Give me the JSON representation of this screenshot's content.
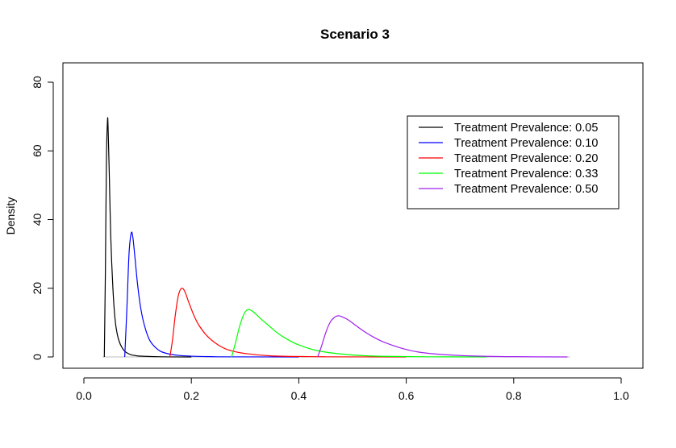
{
  "chart_data": {
    "type": "line",
    "title": "Scenario 3",
    "xlabel": "",
    "ylabel": "Density",
    "xlim": [
      0.0,
      1.0
    ],
    "ylim": [
      0,
      80
    ],
    "x_ticks": [
      0.0,
      0.2,
      0.4,
      0.6,
      0.8,
      1.0
    ],
    "x_tick_labels": [
      "0.0",
      "0.2",
      "0.4",
      "0.6",
      "0.8",
      "1.0"
    ],
    "y_ticks": [
      0,
      20,
      40,
      60,
      80
    ],
    "y_tick_labels": [
      "0",
      "20",
      "40",
      "60",
      "80"
    ],
    "grid": false,
    "legend_position": "top-right",
    "series": [
      {
        "name": "Treatment Prevalence: 0.05",
        "color": "#000000",
        "x": [
          0.038,
          0.04,
          0.042,
          0.044,
          0.045,
          0.047,
          0.05,
          0.054,
          0.058,
          0.063,
          0.07,
          0.08,
          0.1,
          0.15,
          0.2
        ],
        "y": [
          0,
          25,
          58,
          69,
          67,
          55,
          35,
          20,
          11,
          6,
          3,
          1.2,
          0.3,
          0.05,
          0
        ]
      },
      {
        "name": "Treatment Prevalence: 0.10",
        "color": "#0000ff",
        "x": [
          0.076,
          0.08,
          0.084,
          0.088,
          0.091,
          0.095,
          0.1,
          0.106,
          0.113,
          0.122,
          0.135,
          0.15,
          0.18,
          0.25,
          0.4
        ],
        "y": [
          0,
          14,
          30,
          36,
          35,
          29,
          21,
          14,
          9,
          5,
          2.5,
          1.2,
          0.4,
          0.05,
          0
        ]
      },
      {
        "name": "Treatment Prevalence: 0.20",
        "color": "#ff0000",
        "x": [
          0.16,
          0.165,
          0.17,
          0.176,
          0.182,
          0.188,
          0.195,
          0.205,
          0.215,
          0.23,
          0.25,
          0.27,
          0.3,
          0.35,
          0.45,
          0.6
        ],
        "y": [
          0,
          5,
          12,
          18,
          20,
          19,
          16,
          12,
          9,
          6,
          3.5,
          2,
          1,
          0.3,
          0.05,
          0
        ]
      },
      {
        "name": "Treatment Prevalence: 0.33",
        "color": "#00ff00",
        "x": [
          0.275,
          0.282,
          0.29,
          0.298,
          0.305,
          0.312,
          0.32,
          0.33,
          0.345,
          0.36,
          0.38,
          0.4,
          0.43,
          0.47,
          0.53,
          0.65,
          0.75
        ],
        "y": [
          0,
          4,
          9,
          12.5,
          13.8,
          13.5,
          12.5,
          11,
          9,
          7,
          5,
          3.5,
          2,
          1,
          0.3,
          0.05,
          0
        ]
      },
      {
        "name": "Treatment Prevalence: 0.50",
        "color": "#a020f0",
        "x": [
          0.435,
          0.442,
          0.45,
          0.458,
          0.466,
          0.474,
          0.482,
          0.492,
          0.505,
          0.52,
          0.54,
          0.56,
          0.59,
          0.62,
          0.66,
          0.72,
          0.8,
          0.9
        ],
        "y": [
          0,
          3,
          7,
          10,
          11.5,
          12,
          11.6,
          10.8,
          9.3,
          7.6,
          5.7,
          4.2,
          2.6,
          1.5,
          0.8,
          0.3,
          0.08,
          0
        ]
      }
    ]
  }
}
